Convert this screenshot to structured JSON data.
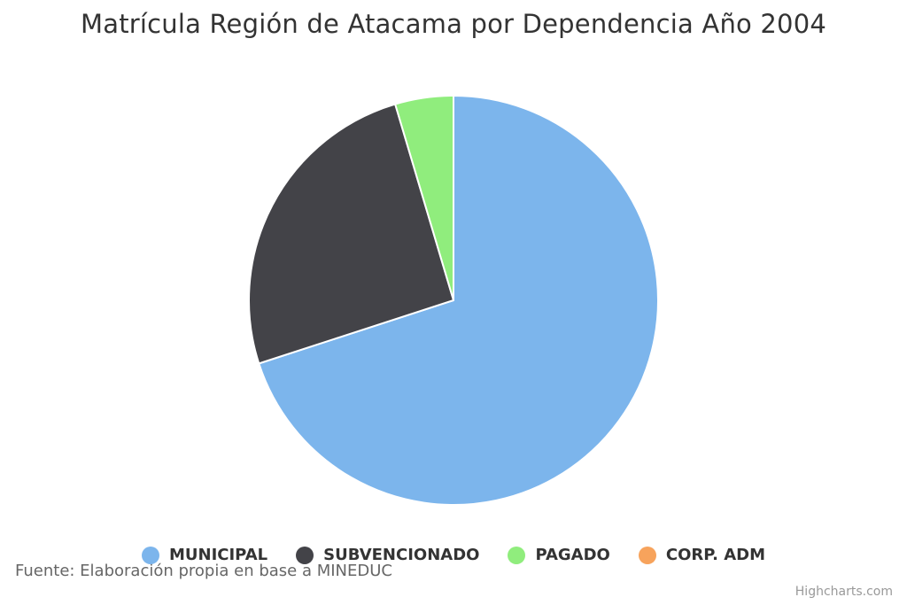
{
  "chart_data": {
    "type": "pie",
    "title": "Matrícula Región de Atacama por Dependencia Año 2004",
    "categories": [
      "MUNICIPAL",
      "SUBVENCIONADO",
      "PAGADO",
      "CORP. ADM"
    ],
    "values": [
      70.0,
      25.4,
      4.6,
      0.0
    ],
    "colors": [
      "#7cb5ec",
      "#434348",
      "#90ed7d",
      "#f7a35c"
    ],
    "legend_position": "bottom-center"
  },
  "source": "Fuente: Elaboración propia en base a MINEDUC",
  "credits": "Highcharts.com"
}
